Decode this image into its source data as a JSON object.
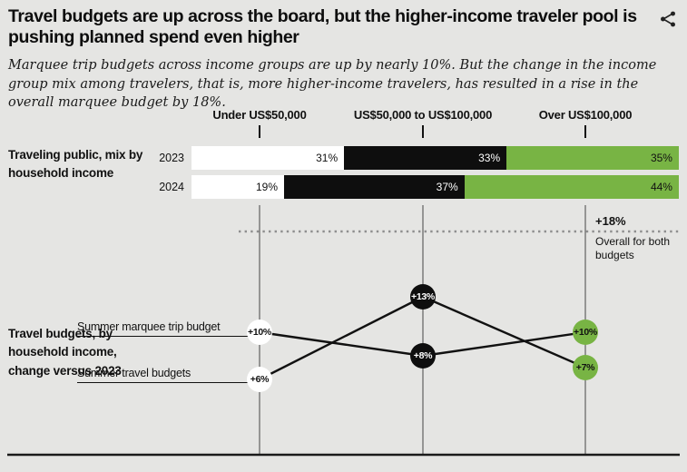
{
  "header": {
    "title": "Travel budgets are up across the board, but the higher-income traveler pool is pushing planned spend even higher"
  },
  "subtitle": "Marquee trip budgets across income groups are up by nearly 10%. But the change in the income group mix among travelers, that is, more higher-income travelers, has resulted in a rise in the overall marquee budget by 18%.",
  "colors": {
    "background": "#e5e5e3",
    "bar_white": "#ffffff",
    "bar_black": "#0e0e0e",
    "bar_green": "#78b444",
    "grid_line": "#454545",
    "dotted_line": "#8f8f8f",
    "text": "#111111"
  },
  "chart_data": {
    "type": [
      "stacked-bar",
      "slope-line"
    ],
    "categories": [
      "Under US$50,000",
      "US$50,000 to US$100,000",
      "Over US$100,000"
    ],
    "stacked_bars": {
      "section_label": "Traveling public, mix by household income",
      "unit": "%",
      "rows": [
        {
          "year": "2023",
          "values": [
            31,
            33,
            35
          ],
          "labels": [
            "31%",
            "33%",
            "35%"
          ]
        },
        {
          "year": "2024",
          "values": [
            19,
            37,
            44
          ],
          "labels": [
            "19%",
            "37%",
            "44%"
          ]
        }
      ],
      "segment_colors": [
        "#ffffff",
        "#0e0e0e",
        "#78b444"
      ],
      "segment_text_colors": [
        "#111111",
        "#ffffff",
        "#111111"
      ]
    },
    "slope_chart": {
      "section_label": "Travel budgets, by household income, change versus 2023",
      "series": [
        {
          "name": "Summer marquee trip budget",
          "values": [
            10,
            8,
            10
          ],
          "labels": [
            "+10%",
            "+8%",
            "+10%"
          ]
        },
        {
          "name": "Summer travel budgets",
          "values": [
            6,
            13,
            7
          ],
          "labels": [
            "+6%",
            "+13%",
            "+7%"
          ]
        }
      ],
      "node_colors_by_column": [
        "#ffffff",
        "#0e0e0e",
        "#78b444"
      ],
      "node_text_colors_by_column": [
        "#111111",
        "#ffffff",
        "#111111"
      ],
      "annotation": {
        "value_label": "+18%",
        "description": "Overall for both budgets"
      }
    }
  }
}
